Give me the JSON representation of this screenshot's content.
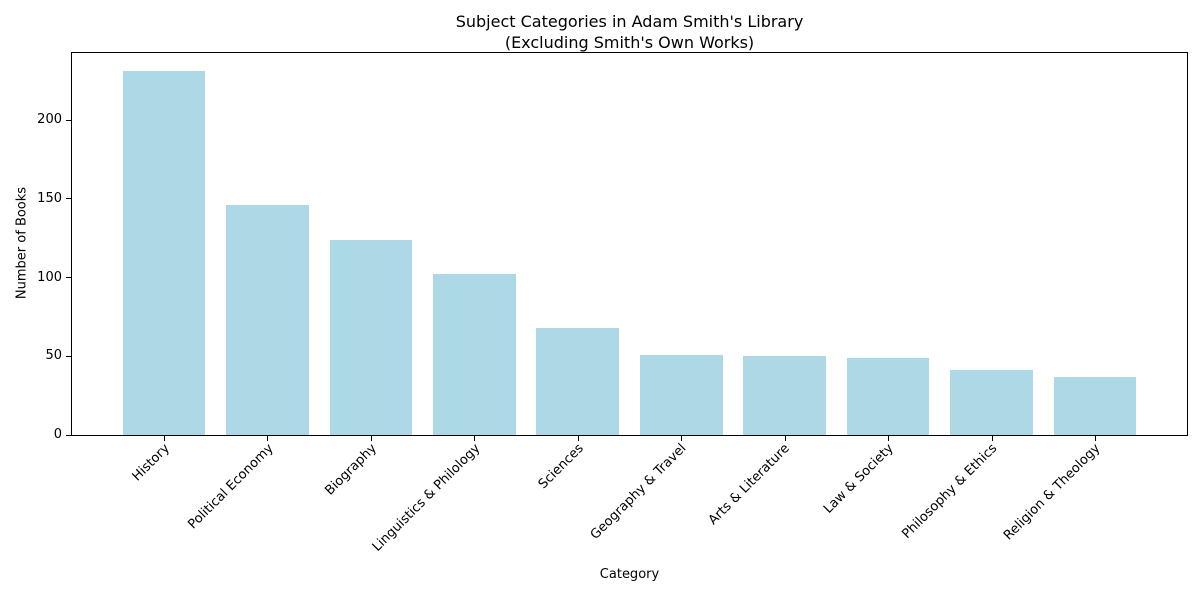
{
  "chart_data": {
    "type": "bar",
    "title": "Subject Categories in Adam Smith's Library\n(Excluding Smith's Own Works)",
    "xlabel": "Category",
    "ylabel": "Number of Books",
    "categories": [
      "History",
      "Political Economy",
      "Biography",
      "Linguistics & Philology",
      "Sciences",
      "Geography & Travel",
      "Arts & Literature",
      "Law & Society",
      "Philosophy & Ethics",
      "Religion & Theology"
    ],
    "values": [
      231,
      146,
      124,
      102,
      68,
      51,
      50,
      49,
      41,
      37
    ],
    "yticks": [
      0,
      50,
      100,
      150,
      200
    ],
    "ylim": [
      0,
      242.6
    ],
    "bar_color": "#ADD8E6",
    "axis_color": "#000000",
    "background_color": "#FFFFFF",
    "grid": false,
    "legend": null,
    "xtick_rotation_degrees": 45
  }
}
